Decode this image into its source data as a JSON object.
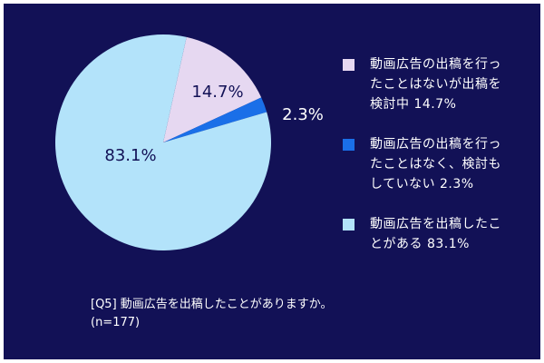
{
  "colors": {
    "background": "#121156",
    "outer_frame": "#ffffff"
  },
  "chart_data": {
    "type": "pie",
    "title": "",
    "slices": [
      {
        "name": "動画広告を出稿したことがある",
        "value": 83.1,
        "label": "83.1%",
        "color": "#b3e3fa",
        "label_color": "#121156"
      },
      {
        "name": "動画広告の出稿を行ったことはないが出稿を検討中",
        "value": 14.7,
        "label": "14.7%",
        "color": "#e6d8f1",
        "label_color": "#121156"
      },
      {
        "name": "動画広告の出稿を行ったことはなく、検討もしていない",
        "value": 2.3,
        "label": "2.3%",
        "color": "#1a6fe8",
        "label_color": "#ffffff"
      }
    ],
    "start_slice": "動画広告を出稿したことがある",
    "direction": "clockwise",
    "legend_position": "right",
    "legend": [
      {
        "text": "動画広告の出稿を行っ\nたことはないが出稿を\n検討中 14.7%",
        "color": "#e6d8f1"
      },
      {
        "text": "動画広告の出稿を行っ\nたことはなく、検討も\nしていない 2.3%",
        "color": "#1a6fe8"
      },
      {
        "text": "動画広告を出稿したこ\nとがある 83.1%",
        "color": "#b3e3fa"
      }
    ],
    "note": "[Q5] 動画広告を出稿したことがありますか。\n(n=177)"
  }
}
